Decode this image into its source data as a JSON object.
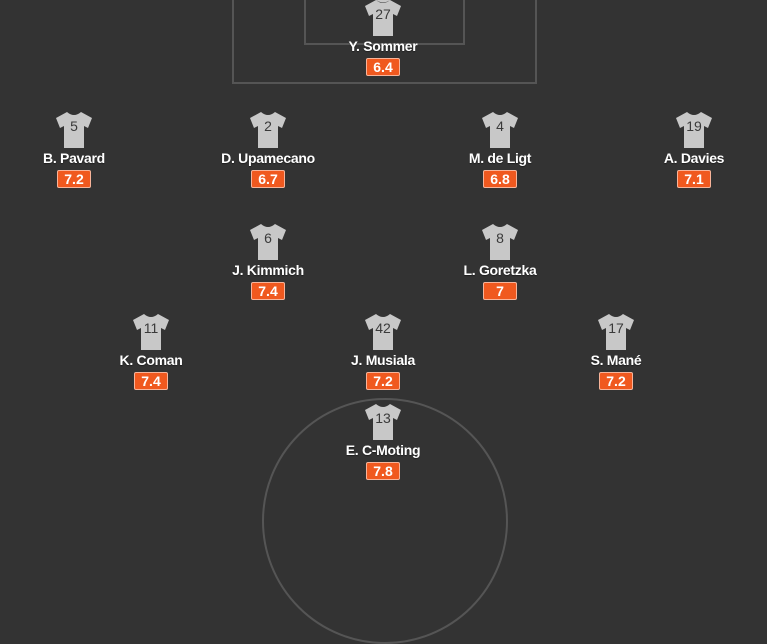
{
  "colors": {
    "pitch": "#333333",
    "lines": "#555555",
    "shirt": "#c8c8c8",
    "rating": "#f0591f"
  },
  "icons": {
    "player_shirt": "shirt-icon"
  },
  "players": [
    {
      "number": "27",
      "name": "Y. Sommer",
      "rating": "6.4"
    },
    {
      "number": "5",
      "name": "B. Pavard",
      "rating": "7.2"
    },
    {
      "number": "2",
      "name": "D. Upamecano",
      "rating": "6.7"
    },
    {
      "number": "4",
      "name": "M. de Ligt",
      "rating": "6.8"
    },
    {
      "number": "19",
      "name": "A. Davies",
      "rating": "7.1"
    },
    {
      "number": "6",
      "name": "J. Kimmich",
      "rating": "7.4"
    },
    {
      "number": "8",
      "name": "L. Goretzka",
      "rating": "7"
    },
    {
      "number": "11",
      "name": "K. Coman",
      "rating": "7.4"
    },
    {
      "number": "42",
      "name": "J. Musiala",
      "rating": "7.2"
    },
    {
      "number": "17",
      "name": "S. Mané",
      "rating": "7.2"
    },
    {
      "number": "13",
      "name": "E. C-Moting",
      "rating": "7.8"
    }
  ]
}
